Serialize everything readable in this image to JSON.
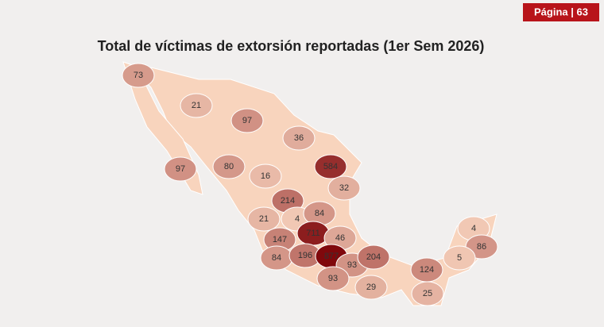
{
  "page_label": "Página | 63",
  "map_data": {
    "title": "Total de víctimas de extorsión reportadas (1er Sem 2026)",
    "values": [
      73,
      21,
      97,
      36,
      584,
      97,
      80,
      16,
      32,
      214,
      21,
      4,
      84,
      711,
      46,
      147,
      84,
      196,
      877,
      93,
      204,
      93,
      29,
      124,
      25,
      4,
      86,
      5
    ]
  }
}
